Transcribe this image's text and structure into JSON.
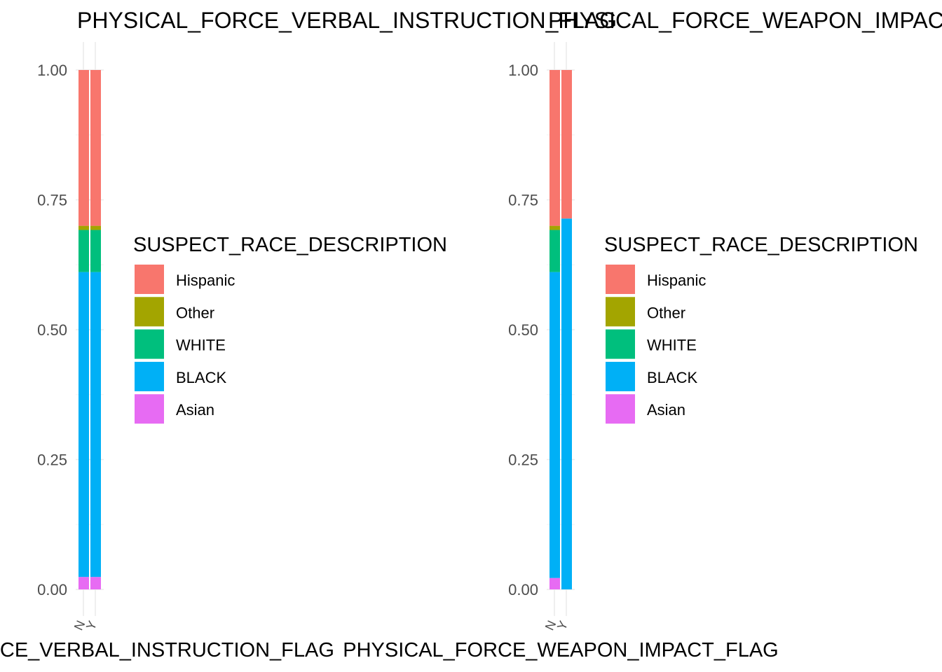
{
  "chart_data": [
    {
      "type": "bar",
      "stacked": true,
      "position": "fill",
      "title": "PHYSICAL_FORCE_VERBAL_INSTRUCTION_FLAG",
      "xlabel": "PHYSICAL_FORCE_VERBAL_INSTRUCTION_FLAG",
      "ylabel": "",
      "categories": [
        "N",
        "Y"
      ],
      "ylim": [
        0,
        1
      ],
      "yticks": [
        "0.00",
        "0.25",
        "0.50",
        "0.75",
        "1.00"
      ],
      "legend_title": "SUSPECT_RACE_DESCRIPTION",
      "legend_position": "right",
      "grid": true,
      "series": [
        {
          "name": "Asian",
          "values": [
            0.024,
            0.024
          ]
        },
        {
          "name": "BLACK",
          "values": [
            0.587,
            0.587
          ]
        },
        {
          "name": "WHITE",
          "values": [
            0.081,
            0.081
          ]
        },
        {
          "name": "Other",
          "values": [
            0.008,
            0.008
          ]
        },
        {
          "name": "Hispanic",
          "values": [
            0.3,
            0.3
          ]
        }
      ]
    },
    {
      "type": "bar",
      "stacked": true,
      "position": "fill",
      "title": "PHYSICAL_FORCE_WEAPON_IMPACT_FLAG",
      "xlabel": "PHYSICAL_FORCE_WEAPON_IMPACT_FLAG",
      "ylabel": "",
      "categories": [
        "N",
        "Y"
      ],
      "ylim": [
        0,
        1
      ],
      "yticks": [
        "0.00",
        "0.25",
        "0.50",
        "0.75",
        "1.00"
      ],
      "legend_title": "SUSPECT_RACE_DESCRIPTION",
      "legend_position": "right",
      "grid": true,
      "series": [
        {
          "name": "Asian",
          "values": [
            0.022,
            0.0
          ]
        },
        {
          "name": "BLACK",
          "values": [
            0.589,
            0.714
          ]
        },
        {
          "name": "WHITE",
          "values": [
            0.081,
            0.0
          ]
        },
        {
          "name": "Other",
          "values": [
            0.008,
            0.0
          ]
        },
        {
          "name": "Hispanic",
          "values": [
            0.3,
            0.286
          ]
        }
      ]
    }
  ],
  "legend": {
    "title": "SUSPECT_RACE_DESCRIPTION",
    "items": [
      {
        "label": "Hispanic",
        "color": "#F8766D"
      },
      {
        "label": "Other",
        "color": "#A3A500"
      },
      {
        "label": "WHITE",
        "color": "#00BF7D"
      },
      {
        "label": "BLACK",
        "color": "#00B0F6"
      },
      {
        "label": "Asian",
        "color": "#E76BF3"
      }
    ]
  }
}
